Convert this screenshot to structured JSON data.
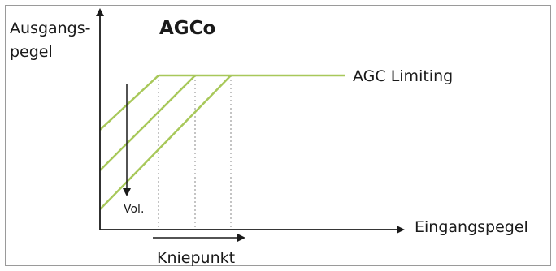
{
  "diagram": {
    "y_axis_label_line1": "Ausgangs-",
    "y_axis_label_line2": "pegel",
    "title": "AGCo",
    "limit_label": "AGC Limiting",
    "volume_label": "Vol.",
    "x_axis_label": "Eingangspegel",
    "knee_label": "Kniepunkt",
    "curve_count": 3,
    "colors": {
      "curve": "#a8c85a",
      "axis": "#1a1a1a",
      "guide": "#8a8a8a",
      "frame": "#9a9a9a"
    }
  }
}
